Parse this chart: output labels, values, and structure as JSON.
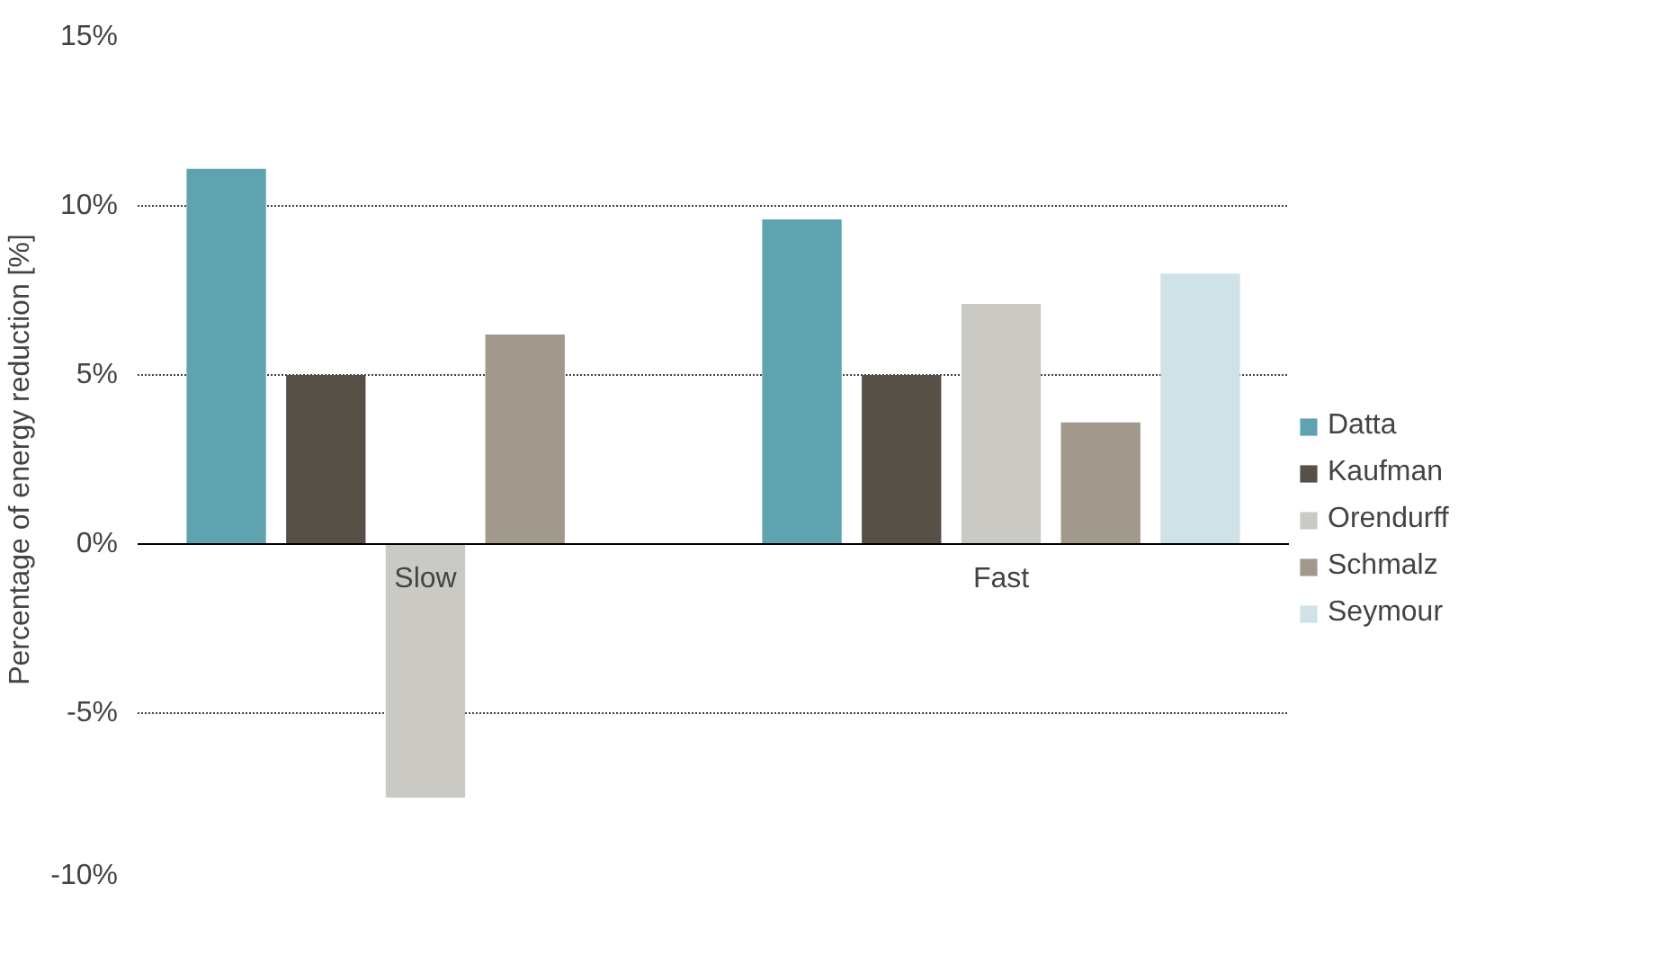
{
  "chart_data": {
    "type": "bar",
    "ylabel": "Percentage of energy reduction [%]",
    "categories": [
      "Slow",
      "Fast"
    ],
    "series": [
      {
        "name": "Datta",
        "color": "#5fa3b0",
        "values": [
          11.1,
          9.6
        ]
      },
      {
        "name": "Kaufman",
        "color": "#565046",
        "values": [
          5.0,
          5.0
        ]
      },
      {
        "name": "Orendurff",
        "color": "#cbc9c4",
        "values": [
          -7.5,
          7.1
        ]
      },
      {
        "name": "Schmalz",
        "color": "#a19a8c",
        "values": [
          6.2,
          3.6
        ]
      },
      {
        "name": "Seymour",
        "color": "#cfe2e8",
        "values": [
          null,
          8.0
        ]
      }
    ],
    "ylim": [
      -10,
      15
    ],
    "yticks": [
      {
        "value": -10,
        "label": "-10%"
      },
      {
        "value": -5,
        "label": "-5%"
      },
      {
        "value": 0,
        "label": "0%"
      },
      {
        "value": 5,
        "label": "5%"
      },
      {
        "value": 10,
        "label": "10%"
      },
      {
        "value": 15,
        "label": "15%"
      }
    ],
    "grid": "y",
    "legend": "right"
  }
}
